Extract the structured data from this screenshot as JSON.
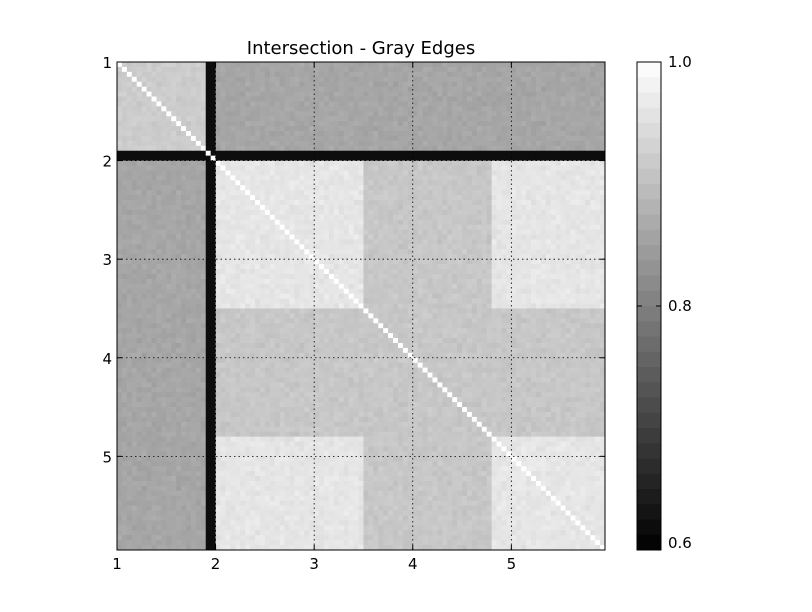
{
  "chart_data": {
    "type": "heatmap",
    "title": "Intersection - Gray Edges",
    "xlabel": "",
    "ylabel": "",
    "x_ticks": [
      "1",
      "2",
      "3",
      "4",
      "5"
    ],
    "y_ticks": [
      "1",
      "2",
      "3",
      "4",
      "5"
    ],
    "x_range": [
      1,
      5.95
    ],
    "y_range": [
      1,
      5.95
    ],
    "y_inverted": true,
    "grid": true,
    "colormap": "gray",
    "colorbar": {
      "min": 0.6,
      "max": 1.0,
      "levels": 32,
      "tick_labels": [
        "0.6",
        "0.8",
        "1.0"
      ],
      "tick_values": [
        0.6,
        0.8,
        1.0
      ]
    },
    "structure": {
      "dark_line_at": 1.94,
      "dark_line_value": 0.62,
      "block_A": [
        1,
        1.94
      ],
      "block_B": [
        1.94,
        5.95
      ],
      "within_A_value": 0.92,
      "within_B_value": 0.96,
      "between_AB_value": 0.86,
      "diagonal_value": 1.0,
      "darker_band_near": [
        3.5,
        4.8
      ],
      "darker_band_value": 0.88
    }
  }
}
